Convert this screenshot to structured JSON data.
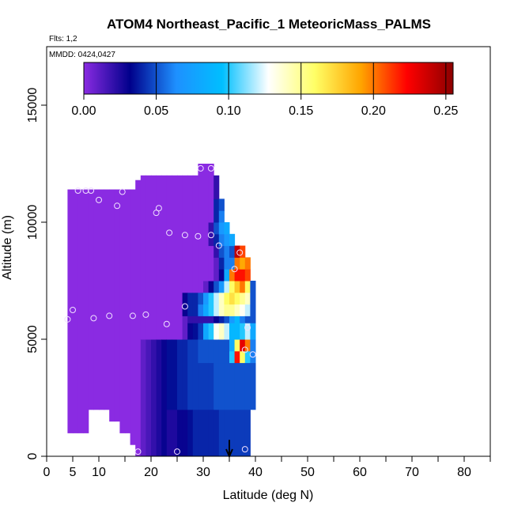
{
  "chart_data": {
    "type": "heatmap",
    "title": "ATOM4 Northeast_Pacific_1 MeteoricMass_PALMS",
    "annotations": {
      "flights": "Flts: 1,2",
      "dates": "MMDD: 0424,0427"
    },
    "xlabel": "Latitude (deg N)",
    "ylabel": "Altitude (m)",
    "xlim": [
      0,
      85
    ],
    "ylim": [
      0,
      17500
    ],
    "xticks": [
      0,
      5,
      10,
      20,
      30,
      40,
      50,
      60,
      70,
      80
    ],
    "xtick_labels": [
      "0",
      "5",
      "10",
      "20",
      "30",
      "40",
      "50",
      "60",
      "70",
      "80"
    ],
    "xticks_minor": [
      15,
      25,
      35,
      45,
      55,
      65,
      75,
      85
    ],
    "yticks": [
      0,
      5000,
      10000,
      15000
    ],
    "ytick_labels": [
      "0",
      "5000",
      "10000",
      "15000"
    ],
    "colorbar": {
      "min": 0,
      "max": 0.255,
      "ticks": [
        0,
        0.05,
        0.1,
        0.15,
        0.2,
        0.25
      ],
      "tick_labels": [
        "0.00",
        "0.05",
        "0.10",
        "0.15",
        "0.20",
        "0.25"
      ],
      "colors": [
        "#8a2be2",
        "#00008b",
        "#1e90ff",
        "#00bfff",
        "#ffffff",
        "#ffff66",
        "#ffa500",
        "#ff0000",
        "#8b0000"
      ]
    },
    "columns": [
      {
        "lat": 4,
        "runs": [
          [
            1000,
            11400,
            0
          ]
        ]
      },
      {
        "lat": 5,
        "runs": [
          [
            1000,
            11400,
            0
          ]
        ]
      },
      {
        "lat": 6,
        "runs": [
          [
            1000,
            11400,
            0
          ]
        ]
      },
      {
        "lat": 7,
        "runs": [
          [
            1000,
            11400,
            0
          ]
        ]
      },
      {
        "lat": 8,
        "runs": [
          [
            2000,
            11400,
            0
          ]
        ]
      },
      {
        "lat": 9,
        "runs": [
          [
            2000,
            11400,
            0
          ]
        ]
      },
      {
        "lat": 10,
        "runs": [
          [
            2000,
            11400,
            0
          ]
        ]
      },
      {
        "lat": 11,
        "runs": [
          [
            2000,
            11400,
            0
          ]
        ]
      },
      {
        "lat": 12,
        "runs": [
          [
            1500,
            11400,
            0
          ]
        ]
      },
      {
        "lat": 13,
        "runs": [
          [
            1500,
            11400,
            0
          ]
        ]
      },
      {
        "lat": 14,
        "runs": [
          [
            1000,
            11400,
            0
          ]
        ]
      },
      {
        "lat": 15,
        "runs": [
          [
            1000,
            11400,
            0
          ]
        ]
      },
      {
        "lat": 16,
        "runs": [
          [
            500,
            11400,
            0
          ]
        ]
      },
      {
        "lat": 17,
        "runs": [
          [
            0,
            11800,
            0
          ]
        ]
      },
      {
        "lat": 18,
        "runs": [
          [
            0,
            5000,
            0.01
          ],
          [
            5000,
            12000,
            0
          ]
        ]
      },
      {
        "lat": 19,
        "runs": [
          [
            0,
            5000,
            0.015
          ],
          [
            5000,
            12000,
            0
          ]
        ]
      },
      {
        "lat": 20,
        "runs": [
          [
            0,
            5000,
            0.02
          ],
          [
            5000,
            12000,
            0
          ]
        ]
      },
      {
        "lat": 21,
        "runs": [
          [
            0,
            5000,
            0.025
          ],
          [
            5000,
            12000,
            0
          ]
        ]
      },
      {
        "lat": 22,
        "runs": [
          [
            0,
            5000,
            0.03
          ],
          [
            5000,
            12000,
            0
          ]
        ]
      },
      {
        "lat": 23,
        "runs": [
          [
            0,
            2000,
            0.025
          ],
          [
            2000,
            5000,
            0.035
          ],
          [
            5000,
            12000,
            0
          ]
        ]
      },
      {
        "lat": 24,
        "runs": [
          [
            0,
            2000,
            0.025
          ],
          [
            2000,
            5000,
            0.035
          ],
          [
            5000,
            12000,
            0
          ]
        ]
      },
      {
        "lat": 25,
        "runs": [
          [
            0,
            2000,
            0.03
          ],
          [
            2000,
            5000,
            0.04
          ],
          [
            5000,
            12000,
            0
          ]
        ]
      },
      {
        "lat": 26,
        "runs": [
          [
            0,
            2000,
            0.03
          ],
          [
            2000,
            5000,
            0.04
          ],
          [
            5000,
            6000,
            0.01
          ],
          [
            6000,
            7000,
            0.03
          ],
          [
            7000,
            12000,
            0
          ]
        ]
      },
      {
        "lat": 27,
        "runs": [
          [
            0,
            2000,
            0.035
          ],
          [
            2000,
            5000,
            0.045
          ],
          [
            5000,
            5700,
            0.03
          ],
          [
            5700,
            6000,
            0.02
          ],
          [
            6000,
            7000,
            0.04
          ],
          [
            7000,
            12000,
            0
          ]
        ]
      },
      {
        "lat": 28,
        "runs": [
          [
            0,
            2000,
            0.04
          ],
          [
            2000,
            5000,
            0.045
          ],
          [
            5000,
            5700,
            0.035
          ],
          [
            5700,
            6000,
            0.02
          ],
          [
            6000,
            7000,
            0.04
          ],
          [
            7000,
            12000,
            0
          ]
        ]
      },
      {
        "lat": 29,
        "runs": [
          [
            0,
            2000,
            0.04
          ],
          [
            2000,
            4000,
            0.045
          ],
          [
            4000,
            5000,
            0.05
          ],
          [
            5000,
            5700,
            0.045
          ],
          [
            5700,
            6000,
            0.02
          ],
          [
            6000,
            6500,
            0.06
          ],
          [
            6500,
            7000,
            0.05
          ],
          [
            7000,
            12500,
            0
          ]
        ]
      },
      {
        "lat": 30,
        "runs": [
          [
            0,
            2000,
            0.04
          ],
          [
            2000,
            4000,
            0.045
          ],
          [
            4000,
            5000,
            0.05
          ],
          [
            5000,
            5700,
            0.08
          ],
          [
            5700,
            6000,
            0.02
          ],
          [
            6000,
            6500,
            0.08
          ],
          [
            6500,
            7000,
            0.07
          ],
          [
            7000,
            7500,
            0.01
          ],
          [
            7500,
            12500,
            0
          ]
        ]
      },
      {
        "lat": 31,
        "runs": [
          [
            0,
            2000,
            0.04
          ],
          [
            2000,
            4000,
            0.045
          ],
          [
            4000,
            5000,
            0.05
          ],
          [
            5000,
            5700,
            0.1
          ],
          [
            5700,
            6000,
            0.02
          ],
          [
            6000,
            6500,
            0.1
          ],
          [
            6500,
            7000,
            0.1
          ],
          [
            7000,
            7500,
            0.03
          ],
          [
            7500,
            9000,
            0
          ],
          [
            9000,
            10000,
            0.02
          ],
          [
            10000,
            12500,
            0
          ]
        ]
      },
      {
        "lat": 32,
        "runs": [
          [
            0,
            2000,
            0.04
          ],
          [
            2000,
            4000,
            0.05
          ],
          [
            4000,
            5000,
            0.05
          ],
          [
            5000,
            5700,
            0.13
          ],
          [
            5700,
            6000,
            0.03
          ],
          [
            6000,
            6500,
            0.12
          ],
          [
            6500,
            7000,
            0.12
          ],
          [
            7000,
            7500,
            0.05
          ],
          [
            7500,
            8500,
            0.01
          ],
          [
            8500,
            9000,
            0.02
          ],
          [
            9000,
            9500,
            0.04
          ],
          [
            9500,
            10000,
            0.05
          ],
          [
            10000,
            11000,
            0.04
          ],
          [
            11000,
            12000,
            0.02
          ]
        ]
      },
      {
        "lat": 33,
        "runs": [
          [
            0,
            2000,
            0.045
          ],
          [
            2000,
            4000,
            0.05
          ],
          [
            4000,
            5000,
            0.05
          ],
          [
            5000,
            5700,
            0.14
          ],
          [
            5700,
            6000,
            0.04
          ],
          [
            6000,
            6500,
            0.14
          ],
          [
            6500,
            7000,
            0.14
          ],
          [
            7000,
            7500,
            0.07
          ],
          [
            7500,
            8000,
            0.03
          ],
          [
            8000,
            8500,
            0.04
          ],
          [
            8500,
            9000,
            0.05
          ],
          [
            9000,
            9500,
            0.06
          ],
          [
            9500,
            10000,
            0.07
          ],
          [
            10000,
            10500,
            0.06
          ],
          [
            10500,
            11000,
            0.05
          ]
        ]
      },
      {
        "lat": 34,
        "runs": [
          [
            0,
            2000,
            0.045
          ],
          [
            2000,
            4000,
            0.05
          ],
          [
            4000,
            4500,
            0.05
          ],
          [
            4500,
            5000,
            0.05
          ],
          [
            5000,
            5700,
            0.12
          ],
          [
            5700,
            6000,
            0.05
          ],
          [
            6000,
            6500,
            0.15
          ],
          [
            6500,
            7000,
            0.16
          ],
          [
            7000,
            7500,
            0.12
          ],
          [
            7500,
            8000,
            0.08
          ],
          [
            8000,
            8500,
            0.06
          ],
          [
            8500,
            9000,
            0.06
          ],
          [
            9000,
            9500,
            0.07
          ],
          [
            9500,
            10000,
            0.08
          ]
        ]
      },
      {
        "lat": 35,
        "runs": [
          [
            0,
            2000,
            0.045
          ],
          [
            2000,
            4000,
            0.05
          ],
          [
            4000,
            4500,
            0.1
          ],
          [
            4500,
            5000,
            0.08
          ],
          [
            5000,
            5700,
            0.09
          ],
          [
            5700,
            6000,
            0.07
          ],
          [
            6000,
            6500,
            0.15
          ],
          [
            6500,
            7000,
            0.17
          ],
          [
            7000,
            7500,
            0.16
          ],
          [
            7500,
            8000,
            0.2
          ],
          [
            8000,
            8500,
            0.06
          ],
          [
            8500,
            9000,
            0.05
          ],
          [
            9000,
            9500,
            0.08
          ]
        ]
      },
      {
        "lat": 36,
        "runs": [
          [
            0,
            2000,
            0.045
          ],
          [
            2000,
            4000,
            0.05
          ],
          [
            4000,
            4500,
            0.22
          ],
          [
            4500,
            5000,
            0.16
          ],
          [
            5000,
            5700,
            0.09
          ],
          [
            5700,
            6000,
            0.09
          ],
          [
            6000,
            6500,
            0.14
          ],
          [
            6500,
            7000,
            0.16
          ],
          [
            7000,
            7500,
            0.18
          ],
          [
            7500,
            8000,
            0.22
          ],
          [
            8000,
            8500,
            0.2
          ],
          [
            8500,
            9000,
            0.24
          ]
        ]
      },
      {
        "lat": 37,
        "runs": [
          [
            0,
            2000,
            0.045
          ],
          [
            2000,
            4000,
            0.05
          ],
          [
            4000,
            4500,
            0.16
          ],
          [
            4500,
            5000,
            0.23
          ],
          [
            5000,
            5700,
            0.1
          ],
          [
            5700,
            6000,
            0.06
          ],
          [
            6000,
            6500,
            0.13
          ],
          [
            6500,
            7000,
            0.15
          ],
          [
            7000,
            7500,
            0.2
          ],
          [
            7500,
            8000,
            0.22
          ],
          [
            8000,
            8500,
            0.19
          ],
          [
            8500,
            9000,
            0.21
          ]
        ]
      },
      {
        "lat": 38,
        "runs": [
          [
            0,
            2000,
            0.045
          ],
          [
            2000,
            4000,
            0.05
          ],
          [
            4000,
            4500,
            0.1
          ],
          [
            4500,
            5000,
            0.2
          ],
          [
            5000,
            5700,
            0.12
          ],
          [
            5700,
            6000,
            0.05
          ],
          [
            6000,
            6500,
            0.12
          ],
          [
            6500,
            7000,
            0.14
          ],
          [
            7000,
            7500,
            0.16
          ],
          [
            7500,
            8000,
            0.21
          ],
          [
            8000,
            8500,
            0.2
          ]
        ]
      },
      {
        "lat": 39,
        "runs": [
          [
            2000,
            4000,
            0.05
          ],
          [
            4000,
            5000,
            0.06
          ],
          [
            5000,
            5700,
            0.08
          ],
          [
            5700,
            7500,
            0.05
          ]
        ]
      }
    ],
    "points": [
      {
        "lat": 4,
        "alt": 5850
      },
      {
        "lat": 5,
        "alt": 6250
      },
      {
        "lat": 6,
        "alt": 11350
      },
      {
        "lat": 7.5,
        "alt": 11350
      },
      {
        "lat": 8.5,
        "alt": 11350
      },
      {
        "lat": 9,
        "alt": 5900
      },
      {
        "lat": 10,
        "alt": 10950
      },
      {
        "lat": 12,
        "alt": 6000
      },
      {
        "lat": 13.5,
        "alt": 10700
      },
      {
        "lat": 14.5,
        "alt": 11300
      },
      {
        "lat": 16.5,
        "alt": 6000
      },
      {
        "lat": 17.5,
        "alt": 200
      },
      {
        "lat": 19,
        "alt": 6050
      },
      {
        "lat": 21,
        "alt": 10400
      },
      {
        "lat": 21.5,
        "alt": 10600
      },
      {
        "lat": 23,
        "alt": 5650
      },
      {
        "lat": 23.5,
        "alt": 9550
      },
      {
        "lat": 25,
        "alt": 200
      },
      {
        "lat": 26.5,
        "alt": 6400
      },
      {
        "lat": 26.5,
        "alt": 9450
      },
      {
        "lat": 29,
        "alt": 9400
      },
      {
        "lat": 29.5,
        "alt": 12300
      },
      {
        "lat": 31.5,
        "alt": 12300
      },
      {
        "lat": 31.5,
        "alt": 9450
      },
      {
        "lat": 33,
        "alt": 9000
      },
      {
        "lat": 36,
        "alt": 8000
      },
      {
        "lat": 37,
        "alt": 8700
      },
      {
        "lat": 38,
        "alt": 4550
      },
      {
        "lat": 38,
        "alt": 300
      },
      {
        "lat": 38.5,
        "alt": 5500
      },
      {
        "lat": 39.5,
        "alt": 4350
      }
    ],
    "arrow": {
      "lat": 35,
      "alt_top": 700,
      "alt_bottom": 0
    }
  }
}
